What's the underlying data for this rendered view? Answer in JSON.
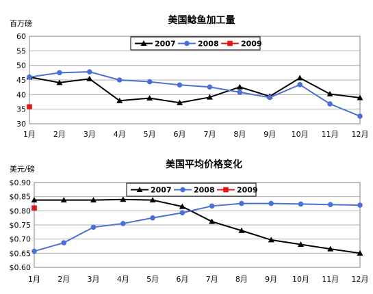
{
  "chart_data": [
    {
      "type": "line",
      "title": "美国鲶鱼加工量",
      "ylabel": "百万磅",
      "xlabel": "",
      "categories": [
        "1月",
        "2月",
        "3月",
        "4月",
        "5月",
        "6月",
        "7月",
        "8月",
        "9月",
        "10月",
        "11月",
        "12月"
      ],
      "ylim": [
        30,
        60
      ],
      "yticks": [
        30,
        35,
        40,
        45,
        50,
        55,
        60
      ],
      "ytick_labels": [
        "30",
        "35",
        "40",
        "45",
        "50",
        "55",
        "60"
      ],
      "grid": true,
      "legend_position": "top-center",
      "series": [
        {
          "name": "2007",
          "color": "#000000",
          "marker": "triangle",
          "values": [
            46.0,
            44.1,
            45.4,
            37.9,
            38.8,
            37.2,
            39.1,
            42.6,
            39.4,
            45.7,
            40.2,
            38.9
          ]
        },
        {
          "name": "2008",
          "color": "#4a70d8",
          "marker": "circle",
          "values": [
            46.0,
            47.5,
            47.8,
            45.0,
            44.4,
            43.3,
            42.6,
            40.8,
            39.0,
            43.4,
            36.8,
            32.6
          ]
        },
        {
          "name": "2009",
          "color": "#e01818",
          "marker": "square",
          "values": [
            35.8,
            null,
            null,
            null,
            null,
            null,
            null,
            null,
            null,
            null,
            null,
            null
          ]
        }
      ]
    },
    {
      "type": "line",
      "title": "美国平均价格变化",
      "ylabel": "美元/磅",
      "xlabel": "",
      "categories": [
        "1月",
        "2月",
        "3月",
        "4月",
        "5月",
        "6月",
        "7月",
        "8月",
        "9月",
        "10月",
        "11月",
        "12月"
      ],
      "ylim": [
        0.6,
        0.9
      ],
      "yticks": [
        0.6,
        0.65,
        0.7,
        0.75,
        0.8,
        0.85,
        0.9
      ],
      "ytick_labels": [
        "$0.60",
        "$0.65",
        "$0.70",
        "$0.75",
        "$0.80",
        "$0.85",
        "$0.90"
      ],
      "grid": true,
      "legend_position": "top-center",
      "series": [
        {
          "name": "2007",
          "color": "#000000",
          "marker": "triangle",
          "values": [
            0.838,
            0.838,
            0.838,
            0.84,
            0.838,
            0.815,
            0.762,
            0.73,
            0.697,
            0.681,
            0.665,
            0.65
          ]
        },
        {
          "name": "2008",
          "color": "#4a70d8",
          "marker": "circle",
          "values": [
            0.657,
            0.687,
            0.742,
            0.755,
            0.775,
            0.793,
            0.817,
            0.826,
            0.826,
            0.824,
            0.822,
            0.82
          ]
        },
        {
          "name": "2009",
          "color": "#e01818",
          "marker": "square",
          "values": [
            0.81,
            null,
            null,
            null,
            null,
            null,
            null,
            null,
            null,
            null,
            null,
            null
          ]
        }
      ]
    }
  ]
}
